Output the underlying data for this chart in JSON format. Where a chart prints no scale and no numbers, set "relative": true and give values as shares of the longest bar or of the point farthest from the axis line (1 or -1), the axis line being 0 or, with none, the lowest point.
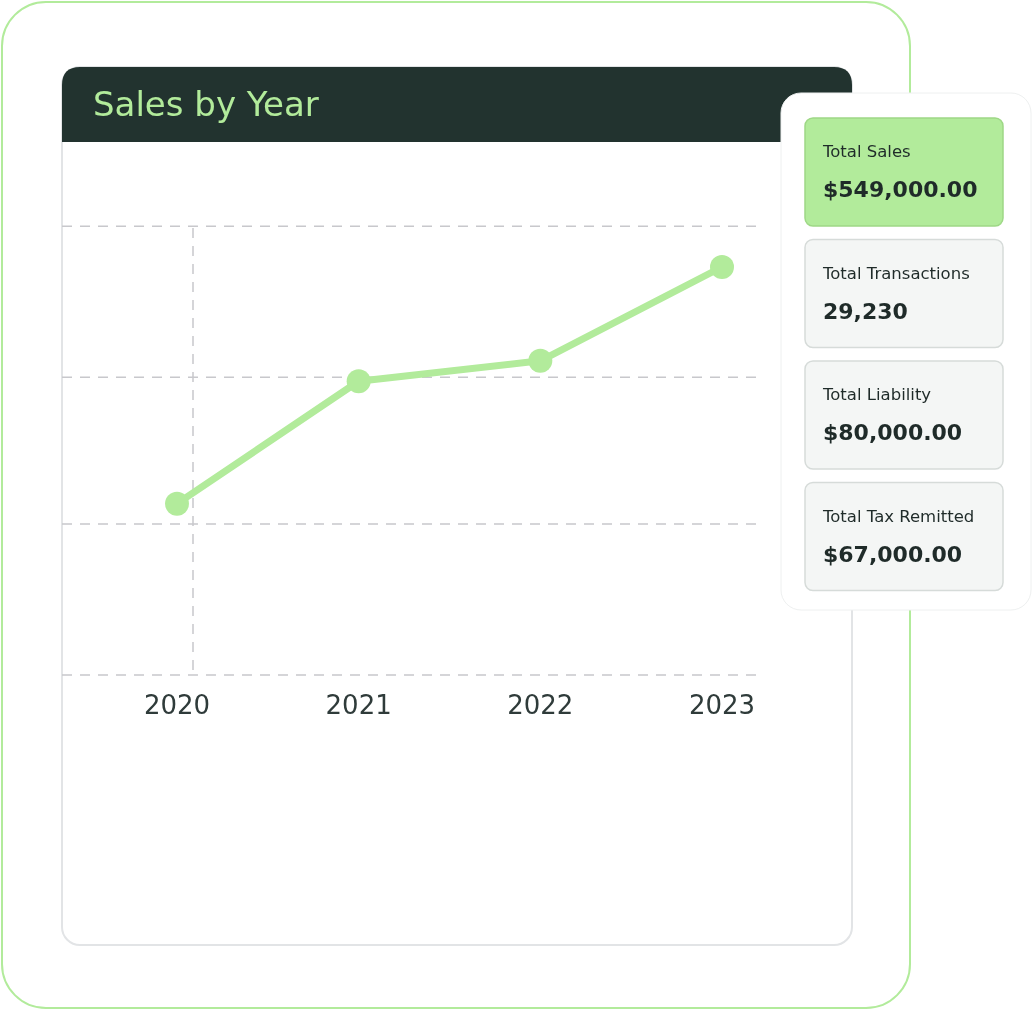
{
  "chart_data": [
    {
      "type": "line",
      "title": "Sales by Year",
      "categories": [
        "2020",
        "2021",
        "2022",
        "2023"
      ],
      "relative": true,
      "series": [
        {
          "color": "#b2eb9b",
          "values": [
            0.42,
            0.72,
            0.77,
            1
          ]
        }
      ],
      "marker": "circle",
      "line_style": "solid",
      "ref_lines": [
        {
          "axis": "x",
          "value": "2020",
          "color": "#c8c8cc",
          "line_style": "dashed"
        },
        {
          "axis": "y",
          "value": 1.1,
          "color": "#c8c8cc",
          "line_style": "dashed"
        },
        {
          "axis": "y",
          "value": 0.73,
          "color": "#c8c8cc",
          "line_style": "dashed"
        },
        {
          "axis": "y",
          "value": 0.37,
          "color": "#c8c8cc",
          "line_style": "dashed"
        },
        {
          "axis": "y",
          "value": 0,
          "color": "#c8c8cc",
          "line_style": "dashed"
        }
      ]
    },
    {
      "type": "other",
      "annotations": [
        "Total Sales",
        "$549,000.00",
        "Total Transactions",
        "29,230",
        "Total Liability",
        "$80,000.00",
        "Total Tax Remitted",
        "$67,000.00"
      ]
    }
  ]
}
